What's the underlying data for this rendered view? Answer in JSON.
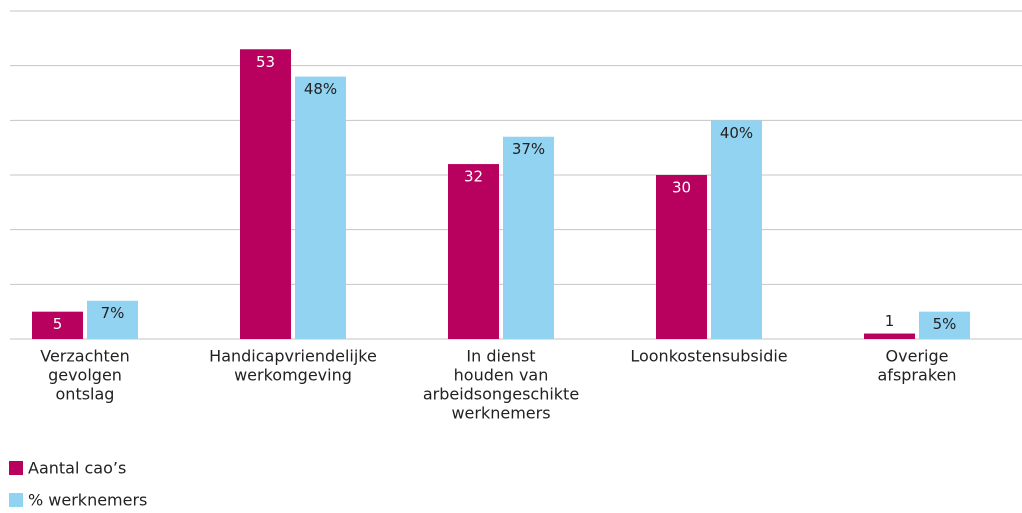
{
  "chart_data": {
    "type": "bar",
    "categories": [
      [
        "Verzachten",
        "gevolgen",
        "ontslag"
      ],
      [
        "Handicapvriendelijke",
        "werkomgeving"
      ],
      [
        "In dienst",
        "houden van",
        "arbeidsongeschikte",
        "werknemers"
      ],
      [
        "Loonkostensubsidie"
      ],
      [
        "Overige",
        "afspraken"
      ]
    ],
    "series": [
      {
        "name": "Aantal cao’s",
        "color": "#b8005f",
        "values": [
          5,
          53,
          32,
          30,
          1
        ]
      },
      {
        "name": "% werknemers",
        "color": "#93d3f2",
        "values": [
          7,
          48,
          37,
          40,
          5
        ],
        "value_labels": [
          "7%",
          "48%",
          "37%",
          "40%",
          "5%"
        ]
      }
    ],
    "ylim": [
      0,
      60
    ],
    "yticks": [
      0,
      10,
      20,
      30,
      40,
      50,
      60
    ],
    "grid": true
  }
}
